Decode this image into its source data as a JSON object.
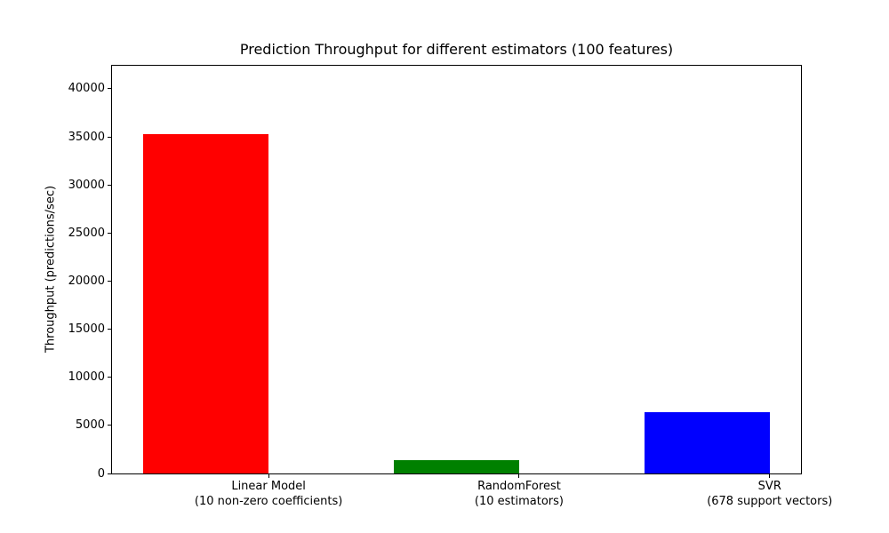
{
  "chart_data": {
    "type": "bar",
    "title": "Prediction Throughput for different estimators (100 features)",
    "xlabel": "",
    "ylabel": "Throughput (predictions/sec)",
    "categories": [
      "Linear Model (10 non-zero coefficients)",
      "RandomForest (10 estimators)",
      "SVR (678 support vectors)"
    ],
    "category_lines": [
      [
        "Linear Model",
        "(10 non-zero coefficients)"
      ],
      [
        "RandomForest",
        "(10 estimators)"
      ],
      [
        "SVR",
        "(678 support vectors)"
      ]
    ],
    "values": [
      35333,
      1400,
      6400
    ],
    "bar_colors": [
      "#ff0000",
      "#008000",
      "#0000ff"
    ],
    "ylim": [
      0,
      42400
    ],
    "yticks": [
      0,
      5000,
      10000,
      15000,
      20000,
      25000,
      30000,
      35000,
      40000
    ],
    "xlim": [
      -0.375,
      2.375
    ],
    "bar_centers": [
      0,
      1,
      2
    ],
    "bar_width_data": 0.5,
    "xtick_positions": [
      0.25,
      1.25,
      2.25
    ],
    "grid": false,
    "legend": null,
    "background_color": "#ffffff",
    "axes_edge_color": "#000000"
  }
}
